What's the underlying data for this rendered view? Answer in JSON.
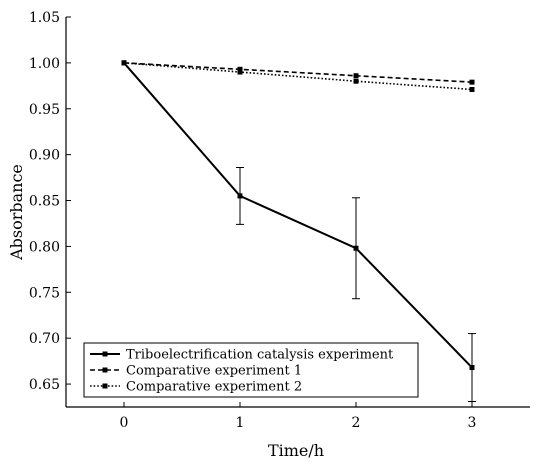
{
  "chart_data": {
    "type": "line",
    "xlabel": "Time/h",
    "ylabel": "Absorbance",
    "x": [
      0,
      1,
      2,
      3
    ],
    "xlim": [
      -0.5,
      3.5
    ],
    "ylim": [
      0.625,
      1.05
    ],
    "x_ticks": [
      "0",
      "1",
      "2",
      "3"
    ],
    "y_ticks": [
      "0.65",
      "0.70",
      "0.75",
      "0.80",
      "0.85",
      "0.90",
      "0.95",
      "1.00",
      "1.05"
    ],
    "grid": false,
    "legend_position": "bottom-left",
    "series": [
      {
        "name": "Triboelectrification catalysis experiment",
        "style": "solid",
        "color": "#000000",
        "values": [
          1.0,
          0.855,
          0.798,
          0.668
        ],
        "error": [
          0.0,
          0.031,
          0.055,
          0.037
        ]
      },
      {
        "name": "Comparative experiment 1",
        "style": "dashed",
        "color": "#000000",
        "values": [
          1.0,
          0.993,
          0.986,
          0.979
        ]
      },
      {
        "name": "Comparative experiment 2",
        "style": "dotted",
        "color": "#000000",
        "values": [
          1.0,
          0.99,
          0.98,
          0.971
        ]
      }
    ]
  }
}
